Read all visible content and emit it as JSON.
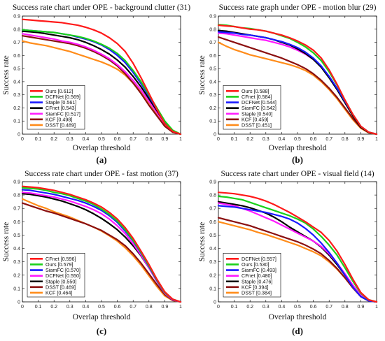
{
  "chart_data": [
    {
      "type": "line",
      "title": "Success rate chart under OPE - background clutter (31)",
      "xlabel": "Overlap threshold",
      "ylabel": "Success rate",
      "panel_label": "(a)",
      "xlim": [
        0,
        1
      ],
      "ylim": [
        0,
        0.9
      ],
      "xticks": [
        "0",
        "0.1",
        "0.2",
        "0.3",
        "0.4",
        "0.5",
        "0.6",
        "0.7",
        "0.8",
        "0.9",
        "1"
      ],
      "yticks": [
        "0",
        "0.1",
        "0.2",
        "0.3",
        "0.4",
        "0.5",
        "0.6",
        "0.7",
        "0.8",
        "0.9"
      ],
      "legend_position": "bottom-left",
      "x": [
        0,
        0.05,
        0.1,
        0.15,
        0.2,
        0.25,
        0.3,
        0.35,
        0.4,
        0.45,
        0.5,
        0.55,
        0.6,
        0.65,
        0.7,
        0.75,
        0.8,
        0.85,
        0.9,
        0.95,
        1.0
      ],
      "series": [
        {
          "name": "Ours [0.612]",
          "color": "#ff1a1a",
          "values": [
            0.875,
            0.87,
            0.865,
            0.86,
            0.855,
            0.85,
            0.84,
            0.83,
            0.815,
            0.795,
            0.77,
            0.735,
            0.69,
            0.63,
            0.54,
            0.43,
            0.31,
            0.19,
            0.08,
            0.02,
            0.0
          ]
        },
        {
          "name": "DCFNet [0.569]",
          "color": "#1ad11a",
          "values": [
            0.795,
            0.79,
            0.785,
            0.78,
            0.775,
            0.765,
            0.755,
            0.745,
            0.73,
            0.71,
            0.685,
            0.655,
            0.615,
            0.56,
            0.485,
            0.4,
            0.3,
            0.2,
            0.1,
            0.03,
            0.0
          ]
        },
        {
          "name": "Staple [0.561]",
          "color": "#1a1aff",
          "values": [
            0.795,
            0.79,
            0.785,
            0.78,
            0.775,
            0.765,
            0.755,
            0.74,
            0.725,
            0.705,
            0.68,
            0.645,
            0.6,
            0.545,
            0.47,
            0.385,
            0.29,
            0.19,
            0.09,
            0.025,
            0.0
          ]
        },
        {
          "name": "CFnet [0.543]",
          "color": "#000000",
          "values": [
            0.785,
            0.78,
            0.775,
            0.765,
            0.755,
            0.745,
            0.735,
            0.72,
            0.7,
            0.675,
            0.645,
            0.61,
            0.565,
            0.51,
            0.44,
            0.36,
            0.27,
            0.18,
            0.085,
            0.02,
            0.0
          ]
        },
        {
          "name": "SiamFC [0.517]",
          "color": "#ff1aff",
          "values": [
            0.765,
            0.755,
            0.745,
            0.735,
            0.725,
            0.71,
            0.7,
            0.685,
            0.665,
            0.64,
            0.61,
            0.575,
            0.53,
            0.475,
            0.41,
            0.335,
            0.25,
            0.165,
            0.08,
            0.02,
            0.0
          ]
        },
        {
          "name": "KCF [0.498]",
          "color": "#8b1010",
          "values": [
            0.75,
            0.74,
            0.73,
            0.72,
            0.71,
            0.7,
            0.69,
            0.675,
            0.655,
            0.63,
            0.6,
            0.565,
            0.52,
            0.46,
            0.39,
            0.31,
            0.22,
            0.14,
            0.06,
            0.015,
            0.0
          ]
        },
        {
          "name": "DSST [0.489]",
          "color": "#ff8c1a",
          "values": [
            0.71,
            0.695,
            0.685,
            0.675,
            0.66,
            0.645,
            0.63,
            0.61,
            0.59,
            0.57,
            0.55,
            0.525,
            0.495,
            0.45,
            0.39,
            0.32,
            0.24,
            0.155,
            0.07,
            0.015,
            0.0
          ]
        }
      ]
    },
    {
      "type": "line",
      "title": "Success rate graph under OPE - motion blur (29)",
      "xlabel": "Overlap threshold",
      "ylabel": "Success rate",
      "panel_label": "(b)",
      "xlim": [
        0,
        1
      ],
      "ylim": [
        0,
        0.9
      ],
      "xticks": [
        "0",
        "0.1",
        "0.2",
        "0.3",
        "0.4",
        "0.5",
        "0.6",
        "0.7",
        "0.8",
        "0.9",
        "1"
      ],
      "yticks": [
        "0",
        "0.1",
        "0.2",
        "0.3",
        "0.4",
        "0.5",
        "0.6",
        "0.7",
        "0.8",
        "0.9"
      ],
      "legend_position": "bottom-left",
      "x": [
        0,
        0.05,
        0.1,
        0.15,
        0.2,
        0.25,
        0.3,
        0.35,
        0.4,
        0.45,
        0.5,
        0.55,
        0.6,
        0.65,
        0.7,
        0.75,
        0.8,
        0.85,
        0.9,
        0.95,
        1.0
      ],
      "series": [
        {
          "name": "Ours [0.588]",
          "color": "#ff1a1a",
          "values": [
            0.83,
            0.825,
            0.82,
            0.81,
            0.8,
            0.795,
            0.785,
            0.77,
            0.755,
            0.735,
            0.71,
            0.68,
            0.64,
            0.58,
            0.49,
            0.38,
            0.26,
            0.15,
            0.06,
            0.015,
            0.0
          ]
        },
        {
          "name": "CFnet [0.584]",
          "color": "#1ad11a",
          "values": [
            0.835,
            0.83,
            0.82,
            0.81,
            0.805,
            0.795,
            0.785,
            0.77,
            0.75,
            0.73,
            0.7,
            0.665,
            0.62,
            0.56,
            0.475,
            0.375,
            0.26,
            0.15,
            0.06,
            0.015,
            0.0
          ]
        },
        {
          "name": "DCFNet [0.544]",
          "color": "#1a1aff",
          "values": [
            0.78,
            0.775,
            0.77,
            0.76,
            0.755,
            0.745,
            0.735,
            0.72,
            0.705,
            0.685,
            0.66,
            0.625,
            0.58,
            0.52,
            0.44,
            0.35,
            0.25,
            0.15,
            0.06,
            0.015,
            0.0
          ]
        },
        {
          "name": "SiamFC [0.542]",
          "color": "#000000",
          "values": [
            0.79,
            0.785,
            0.775,
            0.765,
            0.755,
            0.745,
            0.735,
            0.72,
            0.7,
            0.68,
            0.65,
            0.615,
            0.57,
            0.51,
            0.43,
            0.34,
            0.24,
            0.14,
            0.055,
            0.012,
            0.0
          ]
        },
        {
          "name": "Staple [0.540]",
          "color": "#ff1aff",
          "values": [
            0.77,
            0.765,
            0.755,
            0.745,
            0.735,
            0.725,
            0.715,
            0.7,
            0.685,
            0.665,
            0.64,
            0.61,
            0.57,
            0.515,
            0.44,
            0.35,
            0.25,
            0.15,
            0.06,
            0.015,
            0.0
          ]
        },
        {
          "name": "KCF [0.459]",
          "color": "#8b1010",
          "values": [
            0.74,
            0.72,
            0.7,
            0.68,
            0.66,
            0.64,
            0.62,
            0.6,
            0.58,
            0.555,
            0.53,
            0.5,
            0.46,
            0.41,
            0.35,
            0.28,
            0.2,
            0.12,
            0.05,
            0.012,
            0.0
          ]
        },
        {
          "name": "DSST [0.451]",
          "color": "#ff8c1a",
          "values": [
            0.7,
            0.67,
            0.645,
            0.625,
            0.605,
            0.59,
            0.575,
            0.56,
            0.545,
            0.53,
            0.51,
            0.485,
            0.45,
            0.4,
            0.34,
            0.27,
            0.19,
            0.11,
            0.045,
            0.01,
            0.0
          ]
        }
      ]
    },
    {
      "type": "line",
      "title": "Success rate chart under OPE - fast motion (37)",
      "xlabel": "Overlap threshold",
      "ylabel": "Success rate",
      "panel_label": "(c)",
      "xlim": [
        0,
        1
      ],
      "ylim": [
        0,
        0.9
      ],
      "xticks": [
        "0",
        "0.1",
        "0.2",
        "0.3",
        "0.4",
        "0.5",
        "0.6",
        "0.7",
        "0.8",
        "0.9",
        "1"
      ],
      "yticks": [
        "0",
        "0.1",
        "0.2",
        "0.3",
        "0.4",
        "0.5",
        "0.6",
        "0.7",
        "0.8",
        "0.9"
      ],
      "legend_position": "bottom-left",
      "x": [
        0,
        0.05,
        0.1,
        0.15,
        0.2,
        0.25,
        0.3,
        0.35,
        0.4,
        0.45,
        0.5,
        0.55,
        0.6,
        0.65,
        0.7,
        0.75,
        0.8,
        0.85,
        0.9,
        0.95,
        1.0
      ],
      "series": [
        {
          "name": "CFnet [0.596]",
          "color": "#ff1a1a",
          "values": [
            0.865,
            0.86,
            0.855,
            0.845,
            0.835,
            0.82,
            0.805,
            0.785,
            0.765,
            0.74,
            0.71,
            0.67,
            0.62,
            0.555,
            0.475,
            0.38,
            0.28,
            0.17,
            0.075,
            0.02,
            0.0
          ]
        },
        {
          "name": "Ours [0.579]",
          "color": "#1ad11a",
          "values": [
            0.855,
            0.85,
            0.845,
            0.835,
            0.82,
            0.81,
            0.795,
            0.775,
            0.755,
            0.73,
            0.695,
            0.655,
            0.605,
            0.54,
            0.46,
            0.37,
            0.27,
            0.165,
            0.07,
            0.02,
            0.0
          ]
        },
        {
          "name": "SiamFC [0.570]",
          "color": "#1a1aff",
          "values": [
            0.84,
            0.835,
            0.825,
            0.815,
            0.805,
            0.79,
            0.775,
            0.76,
            0.74,
            0.715,
            0.685,
            0.645,
            0.595,
            0.53,
            0.455,
            0.365,
            0.265,
            0.16,
            0.07,
            0.018,
            0.0
          ]
        },
        {
          "name": "DCFNet [0.550]",
          "color": "#ff1aff",
          "values": [
            0.82,
            0.815,
            0.805,
            0.795,
            0.785,
            0.77,
            0.755,
            0.735,
            0.715,
            0.69,
            0.66,
            0.62,
            0.57,
            0.51,
            0.435,
            0.35,
            0.255,
            0.155,
            0.065,
            0.015,
            0.0
          ]
        },
        {
          "name": "Staple [0.550]",
          "color": "#000000",
          "values": [
            0.81,
            0.805,
            0.795,
            0.785,
            0.77,
            0.755,
            0.735,
            0.715,
            0.69,
            0.66,
            0.625,
            0.585,
            0.54,
            0.485,
            0.42,
            0.345,
            0.255,
            0.155,
            0.065,
            0.015,
            0.0
          ]
        },
        {
          "name": "DSST [0.469]",
          "color": "#8b1010",
          "values": [
            0.74,
            0.72,
            0.7,
            0.68,
            0.665,
            0.645,
            0.625,
            0.605,
            0.585,
            0.56,
            0.535,
            0.5,
            0.465,
            0.42,
            0.36,
            0.29,
            0.21,
            0.13,
            0.055,
            0.012,
            0.0
          ]
        },
        {
          "name": "KCF [0.464]",
          "color": "#ff8c1a",
          "values": [
            0.77,
            0.745,
            0.72,
            0.7,
            0.675,
            0.655,
            0.635,
            0.61,
            0.585,
            0.56,
            0.53,
            0.495,
            0.455,
            0.405,
            0.345,
            0.275,
            0.195,
            0.115,
            0.045,
            0.01,
            0.0
          ]
        }
      ]
    },
    {
      "type": "line",
      "title": "Success rate chart under OPE - visual field (14)",
      "xlabel": "Overlap threshold",
      "ylabel": "Success rate",
      "panel_label": "(d)",
      "xlim": [
        0,
        1
      ],
      "ylim": [
        0,
        0.9
      ],
      "xticks": [
        "0",
        "0.1",
        "0.2",
        "0.3",
        "0.4",
        "0.5",
        "0.6",
        "0.7",
        "0.8",
        "0.9",
        "1"
      ],
      "yticks": [
        "0",
        "0.1",
        "0.2",
        "0.3",
        "0.4",
        "0.5",
        "0.6",
        "0.7",
        "0.8",
        "0.9"
      ],
      "legend_position": "bottom-left",
      "x": [
        0,
        0.05,
        0.1,
        0.15,
        0.2,
        0.25,
        0.3,
        0.35,
        0.4,
        0.45,
        0.5,
        0.55,
        0.6,
        0.65,
        0.7,
        0.75,
        0.8,
        0.85,
        0.9,
        0.95,
        1.0
      ],
      "series": [
        {
          "name": "DCFNet [0.557]",
          "color": "#ff1a1a",
          "values": [
            0.82,
            0.815,
            0.81,
            0.8,
            0.79,
            0.775,
            0.755,
            0.73,
            0.7,
            0.67,
            0.635,
            0.6,
            0.56,
            0.52,
            0.46,
            0.38,
            0.28,
            0.17,
            0.07,
            0.015,
            0.0
          ]
        },
        {
          "name": "Ours [0.530]",
          "color": "#1ad11a",
          "values": [
            0.79,
            0.785,
            0.775,
            0.765,
            0.745,
            0.725,
            0.705,
            0.685,
            0.665,
            0.645,
            0.62,
            0.59,
            0.545,
            0.49,
            0.425,
            0.35,
            0.255,
            0.155,
            0.065,
            0.015,
            0.0
          ]
        },
        {
          "name": "SiamFC [0.493]",
          "color": "#1a1aff",
          "values": [
            0.72,
            0.715,
            0.71,
            0.7,
            0.69,
            0.68,
            0.67,
            0.655,
            0.64,
            0.62,
            0.59,
            0.55,
            0.5,
            0.44,
            0.37,
            0.29,
            0.2,
            0.11,
            0.04,
            0.008,
            0.0
          ]
        },
        {
          "name": "CFnet [0.480]",
          "color": "#ff1aff",
          "values": [
            0.74,
            0.73,
            0.72,
            0.7,
            0.68,
            0.655,
            0.63,
            0.605,
            0.575,
            0.545,
            0.515,
            0.485,
            0.455,
            0.415,
            0.36,
            0.29,
            0.21,
            0.125,
            0.05,
            0.01,
            0.0
          ]
        },
        {
          "name": "Staple [0.476]",
          "color": "#000000",
          "values": [
            0.75,
            0.74,
            0.73,
            0.72,
            0.705,
            0.685,
            0.665,
            0.635,
            0.6,
            0.56,
            0.525,
            0.49,
            0.455,
            0.41,
            0.35,
            0.28,
            0.2,
            0.12,
            0.045,
            0.01,
            0.0
          ]
        },
        {
          "name": "KCF [0.394]",
          "color": "#8b1010",
          "values": [
            0.63,
            0.615,
            0.6,
            0.585,
            0.57,
            0.55,
            0.53,
            0.51,
            0.49,
            0.47,
            0.45,
            0.425,
            0.395,
            0.36,
            0.31,
            0.25,
            0.18,
            0.105,
            0.04,
            0.008,
            0.0
          ]
        },
        {
          "name": "DSST [0.384]",
          "color": "#ff8c1a",
          "values": [
            0.6,
            0.585,
            0.57,
            0.555,
            0.54,
            0.52,
            0.505,
            0.485,
            0.465,
            0.445,
            0.425,
            0.4,
            0.375,
            0.345,
            0.3,
            0.245,
            0.18,
            0.105,
            0.04,
            0.008,
            0.0
          ]
        }
      ]
    }
  ]
}
